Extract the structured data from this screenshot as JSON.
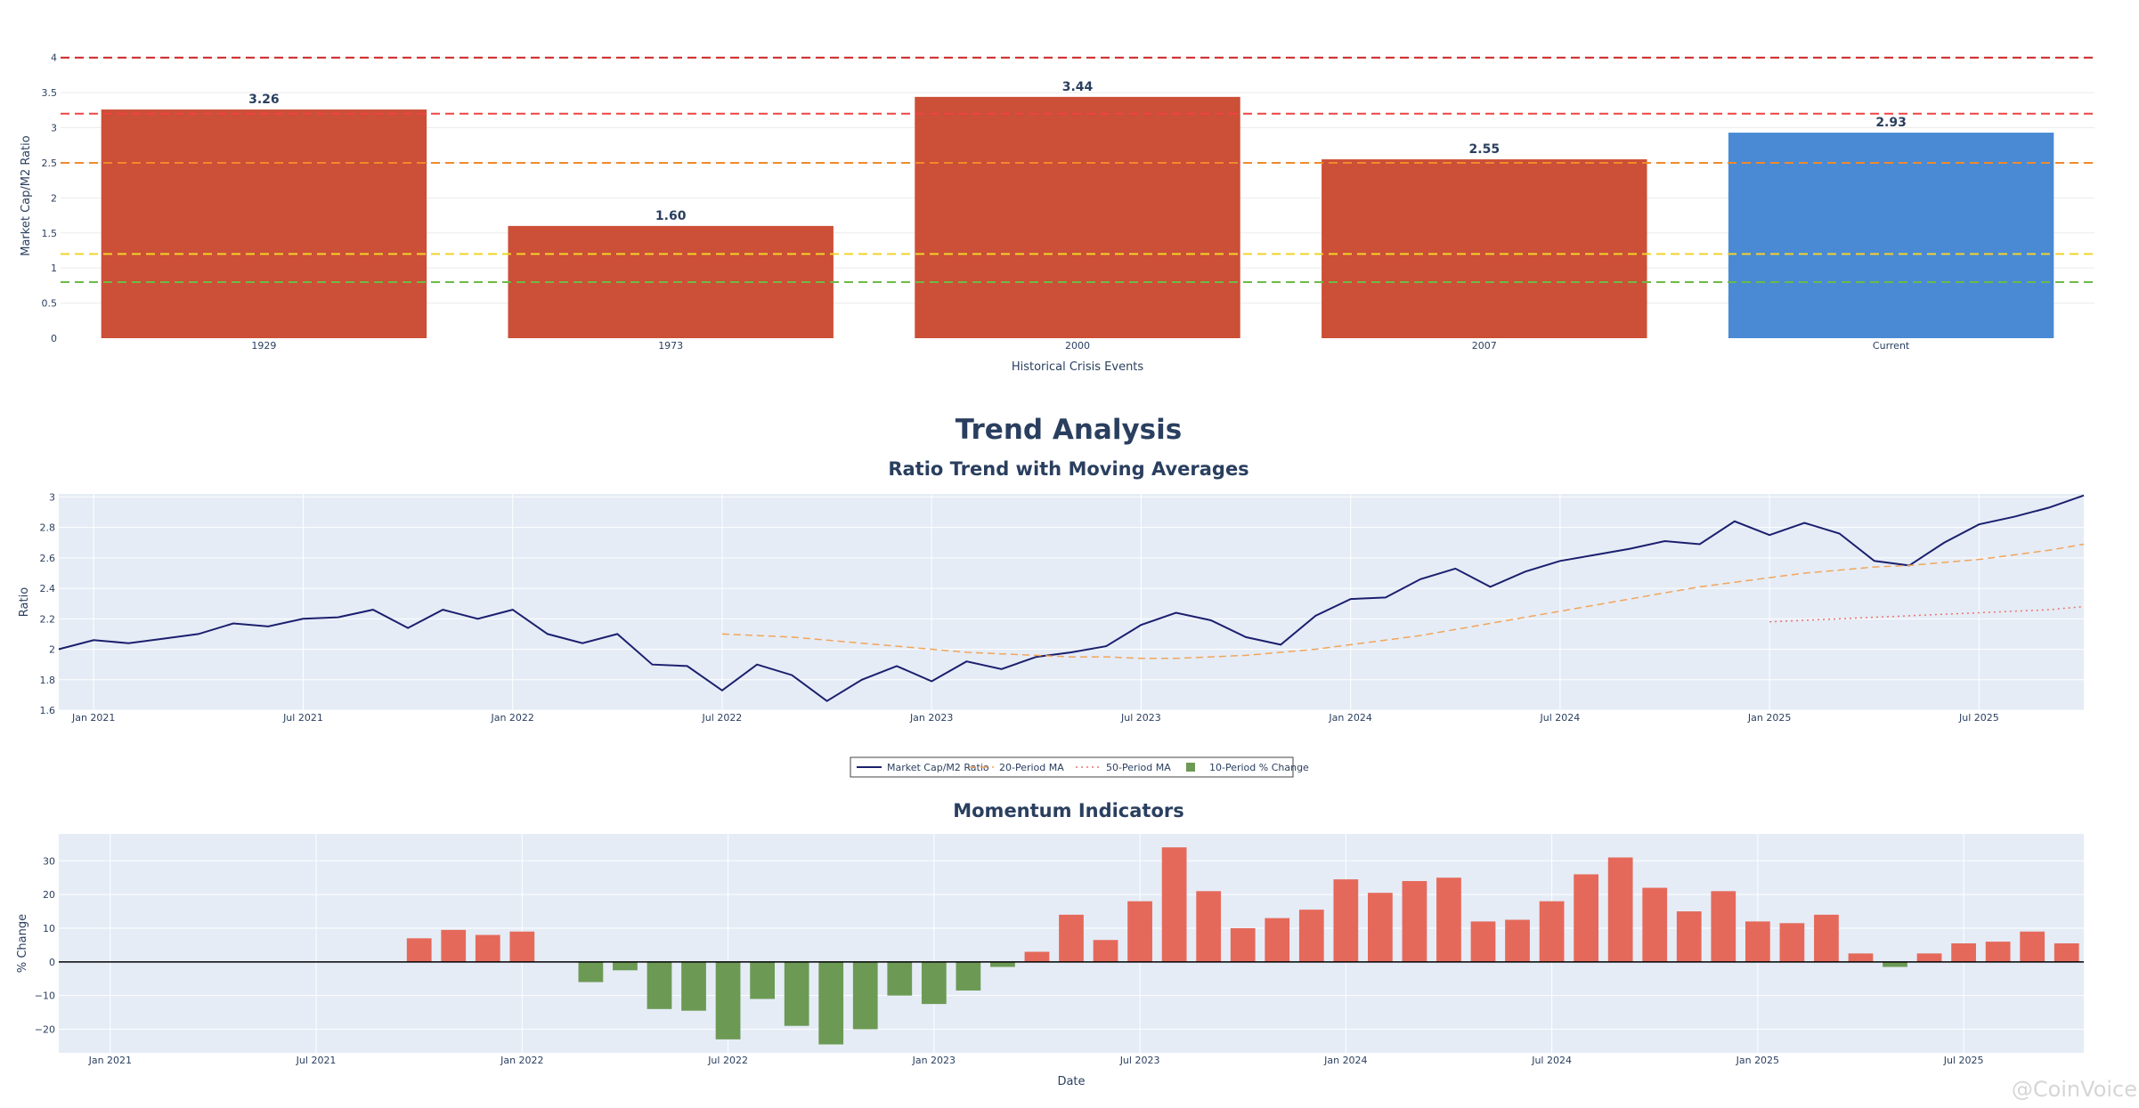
{
  "main_title": "Trend Analysis",
  "watermark": "@CoinVoice",
  "colors": {
    "historical": "#cc4f37",
    "current": "#4a8ad4",
    "ratio_line": "#1b1f6e",
    "ma20": "#f2a55a",
    "ma50": "#e8736a",
    "pct_up": "#e5695a",
    "pct_down": "#6c9a55",
    "plot_bg": "#e5ecf6",
    "threshold_1": "#cc2222",
    "threshold_2": "#ee4444",
    "threshold_3": "#f08a2a",
    "threshold_4": "#f2d22a",
    "threshold_5": "#6cbb46"
  },
  "chart_data": [
    {
      "type": "bar",
      "title": "",
      "xlabel": "Historical Crisis Events",
      "ylabel": "Market Cap/M2 Ratio",
      "categories": [
        "1929",
        "1973",
        "2000",
        "2007",
        "Current"
      ],
      "values": [
        3.26,
        1.6,
        3.44,
        2.55,
        2.93
      ],
      "value_labels": [
        "3.26",
        "1.60",
        "3.44",
        "2.55",
        "2.93"
      ],
      "ylim": [
        0,
        4.06
      ],
      "yticks": [
        "0",
        "0.5",
        "1",
        "1.5",
        "2",
        "2.5",
        "3",
        "3.5",
        "4"
      ],
      "threshold_lines": [
        4.0,
        3.2,
        2.5,
        1.2,
        0.8
      ],
      "grid": true,
      "legend": "none"
    },
    {
      "type": "line",
      "title": "Ratio Trend with Moving Averages",
      "ylabel": "Ratio",
      "xlabel": "",
      "x_start": "2020-12",
      "xticks": [
        "Jan 2021",
        "Jul 2021",
        "Jan 2022",
        "Jul 2022",
        "Jan 2023",
        "Jul 2023",
        "Jan 2024",
        "Jul 2024",
        "Jan 2025",
        "Jul 2025"
      ],
      "ylim": [
        1.6,
        3.02
      ],
      "yticks": [
        "1.6",
        "1.8",
        "2",
        "2.2",
        "2.4",
        "2.6",
        "2.8",
        "3"
      ],
      "grid": true,
      "legend": "bottom-center",
      "series": [
        {
          "name": "Market Cap/M2 Ratio",
          "values": [
            2.0,
            2.06,
            2.04,
            2.07,
            2.1,
            2.17,
            2.15,
            2.2,
            2.21,
            2.26,
            2.14,
            2.26,
            2.2,
            2.26,
            2.1,
            2.04,
            2.1,
            1.9,
            1.89,
            1.73,
            1.9,
            1.83,
            1.66,
            1.8,
            1.89,
            1.79,
            1.92,
            1.87,
            1.95,
            1.98,
            2.02,
            2.16,
            2.24,
            2.19,
            2.08,
            2.03,
            2.22,
            2.33,
            2.34,
            2.46,
            2.53,
            2.41,
            2.51,
            2.58,
            2.62,
            2.66,
            2.71,
            2.69,
            2.84,
            2.75,
            2.83,
            2.76,
            2.58,
            2.55,
            2.7,
            2.82,
            2.87,
            2.93,
            3.01
          ]
        },
        {
          "name": "20-Period MA",
          "offset": 19,
          "values": [
            2.1,
            2.09,
            2.08,
            2.06,
            2.04,
            2.02,
            2.0,
            1.98,
            1.97,
            1.96,
            1.95,
            1.95,
            1.94,
            1.94,
            1.95,
            1.96,
            1.98,
            2.0,
            2.03,
            2.06,
            2.09,
            2.13,
            2.17,
            2.21,
            2.25,
            2.29,
            2.33,
            2.37,
            2.41,
            2.44,
            2.47,
            2.5,
            2.52,
            2.54,
            2.55,
            2.57,
            2.59,
            2.62,
            2.65,
            2.69
          ]
        },
        {
          "name": "50-Period MA",
          "offset": 49,
          "values": [
            2.18,
            2.19,
            2.2,
            2.21,
            2.22,
            2.23,
            2.24,
            2.25,
            2.26,
            2.28
          ]
        }
      ],
      "legend_items": [
        "Market Cap/M2 Ratio",
        "20-Period MA",
        "50-Period MA",
        "10-Period % Change"
      ]
    },
    {
      "type": "bar",
      "title": "Momentum Indicators",
      "ylabel": "% Change",
      "xlabel": "Date",
      "x_start": "2020-12",
      "xticks": [
        "Jan 2021",
        "Jul 2021",
        "Jan 2022",
        "Jul 2022",
        "Jan 2023",
        "Jul 2023",
        "Jan 2024",
        "Jul 2024",
        "Jan 2025",
        "Jul 2025"
      ],
      "ylim": [
        -27,
        38
      ],
      "yticks": [
        "−20",
        "−10",
        "0",
        "10",
        "20",
        "30"
      ],
      "grid": true,
      "series": [
        {
          "name": "10-Period % Change",
          "offset": 10,
          "values": [
            7,
            9.5,
            8,
            9,
            null,
            -6,
            -2.5,
            -14,
            -14.5,
            -23,
            -11,
            -19,
            -24.5,
            -20,
            -10,
            -12.5,
            -8.5,
            -1.5,
            3,
            14,
            6.5,
            18,
            34,
            21,
            10,
            13,
            15.5,
            24.5,
            20.5,
            24,
            25,
            12,
            12.5,
            18,
            26,
            31,
            22,
            15,
            21,
            12,
            11.5,
            14,
            2.5,
            -1.5,
            2.5,
            5.5,
            6,
            9,
            5.5
          ]
        }
      ]
    }
  ]
}
